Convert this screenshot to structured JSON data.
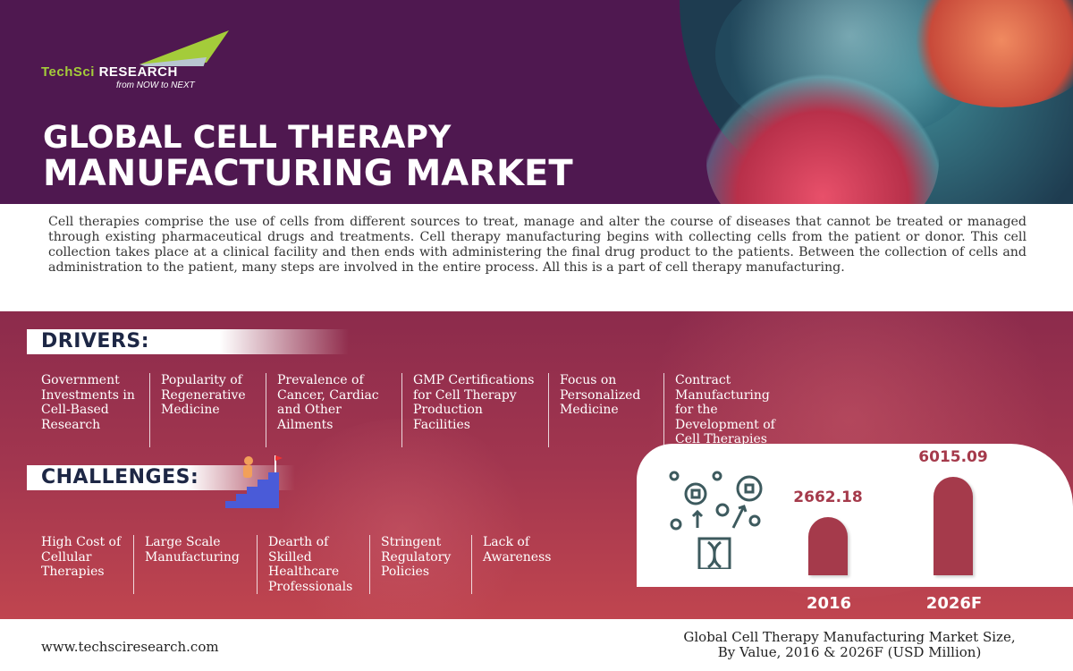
{
  "brand": {
    "name_part1": "TechSci",
    "name_part2": "Research",
    "tagline": "from NOW to NEXT",
    "colors": {
      "green": "#a4cc3a",
      "purple": "#4f1850"
    }
  },
  "title": {
    "line1": "GLOBAL CELL THERAPY",
    "line2": "MANUFACTURING MARKET"
  },
  "intro": "Cell therapies comprise the use of cells from different sources to treat, manage and alter the course of diseases that cannot be treated or managed through existing pharmaceutical drugs and treatments. Cell therapy manufacturing begins with collecting cells from the patient or donor. This cell collection takes place at a clinical facility and then ends with administering the final drug product to the patients. Between the collection of cells and administration to the patient, many steps are involved in the entire process. All this is a part of cell therapy manufacturing.",
  "drivers": {
    "heading": "DRIVERS:",
    "items": [
      "Government Investments in Cell-Based Research",
      "Popularity of Regenerative Medicine",
      "Prevalence of Cancer, Cardiac and Other Ailments",
      "GMP Certifications for Cell Therapy Production Facilities",
      "Focus on Personalized Medicine",
      "Contract Manufacturing for the Development of Cell Therapies"
    ]
  },
  "challenges": {
    "heading": "CHALLENGES:",
    "items": [
      "High Cost of Cellular Therapies",
      "Large Scale Manufacturing",
      "Dearth of Skilled Healthcare Professionals",
      "Stringent Regulatory Policies",
      "Lack of Awareness"
    ]
  },
  "chart_data": {
    "type": "bar",
    "categories": [
      "2016",
      "2026F"
    ],
    "values": [
      2662.18,
      6015.09
    ],
    "value_labels": [
      "2662.18",
      "6015.09"
    ],
    "color": "#a53a4b",
    "title": "Global Cell Therapy Manufacturing Market Size, By Value, 2016 & 2026F (USD Million)"
  },
  "caption": {
    "line1": "Global Cell Therapy Manufacturing Market Size,",
    "line2": "By Value, 2016 & 2026F (USD Million)"
  },
  "footer": {
    "url": "www.techsciresearch.com"
  }
}
